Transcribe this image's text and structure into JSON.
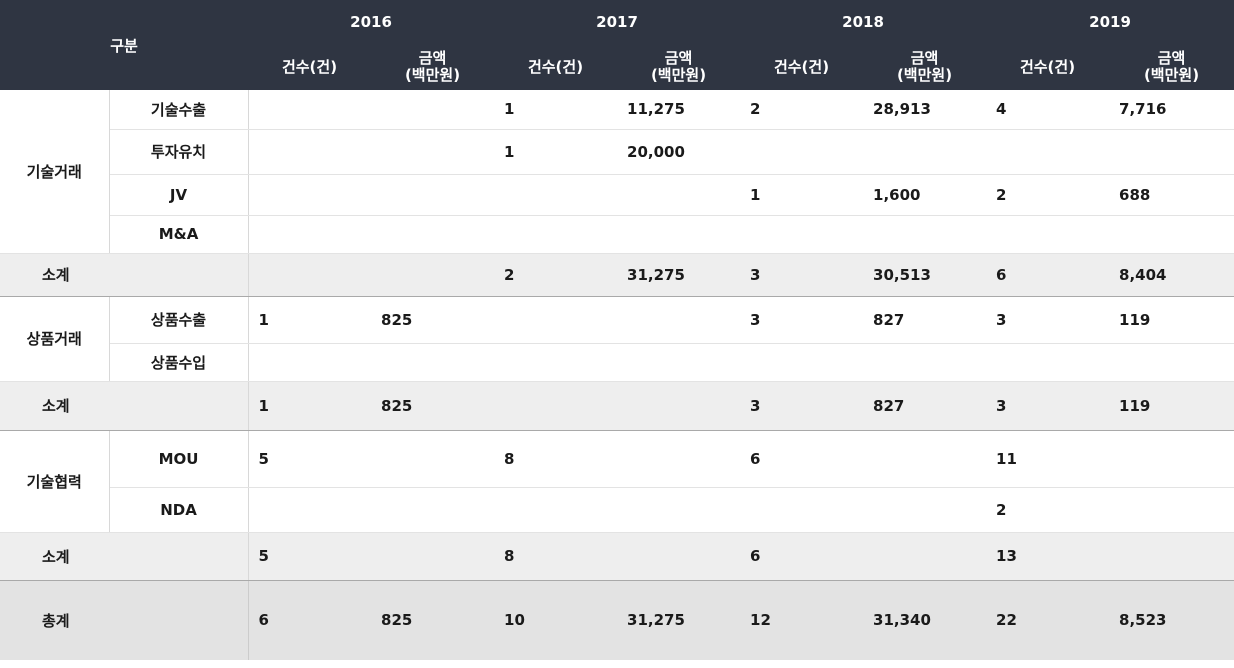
{
  "header": {
    "category_label": "구분",
    "years": [
      "2016",
      "2017",
      "2018",
      "2019"
    ],
    "count_label": "건수(건)",
    "amount_label_line1": "금액",
    "amount_label_line2": "(백만원)"
  },
  "groups": [
    {
      "name": "기술거래",
      "rows": [
        {
          "label": "기술수출",
          "cells": [
            "",
            "",
            "1",
            "11,275",
            "2",
            "28,913",
            "4",
            "7,716"
          ]
        },
        {
          "label": "투자유치",
          "cells": [
            "",
            "",
            "1",
            "20,000",
            "",
            "",
            "",
            ""
          ]
        },
        {
          "label": "JV",
          "cells": [
            "",
            "",
            "",
            "",
            "1",
            "1,600",
            "2",
            "688"
          ]
        },
        {
          "label": "M&A",
          "cells": [
            "",
            "",
            "",
            "",
            "",
            "",
            "",
            ""
          ]
        }
      ],
      "subtotal": {
        "label": "소계",
        "cells": [
          "",
          "",
          "2",
          "31,275",
          "3",
          "30,513",
          "6",
          "8,404"
        ]
      }
    },
    {
      "name": "상품거래",
      "rows": [
        {
          "label": "상품수출",
          "cells": [
            "1",
            "825",
            "",
            "",
            "3",
            "827",
            "3",
            "119"
          ]
        },
        {
          "label": "상품수입",
          "cells": [
            "",
            "",
            "",
            "",
            "",
            "",
            "",
            ""
          ]
        }
      ],
      "subtotal": {
        "label": "소계",
        "cells": [
          "1",
          "825",
          "",
          "",
          "3",
          "827",
          "3",
          "119"
        ]
      }
    },
    {
      "name": "기술협력",
      "rows": [
        {
          "label": "MOU",
          "cells": [
            "5",
            "",
            "8",
            "",
            "6",
            "",
            "11",
            ""
          ]
        },
        {
          "label": "NDA",
          "cells": [
            "",
            "",
            "",
            "",
            "",
            "",
            "2",
            ""
          ]
        }
      ],
      "subtotal": {
        "label": "소계",
        "cells": [
          "5",
          "",
          "8",
          "",
          "6",
          "",
          "13",
          ""
        ]
      }
    }
  ],
  "total": {
    "label": "총계",
    "cells": [
      "6",
      "825",
      "10",
      "31,275",
      "12",
      "31,340",
      "22",
      "8,523"
    ]
  }
}
